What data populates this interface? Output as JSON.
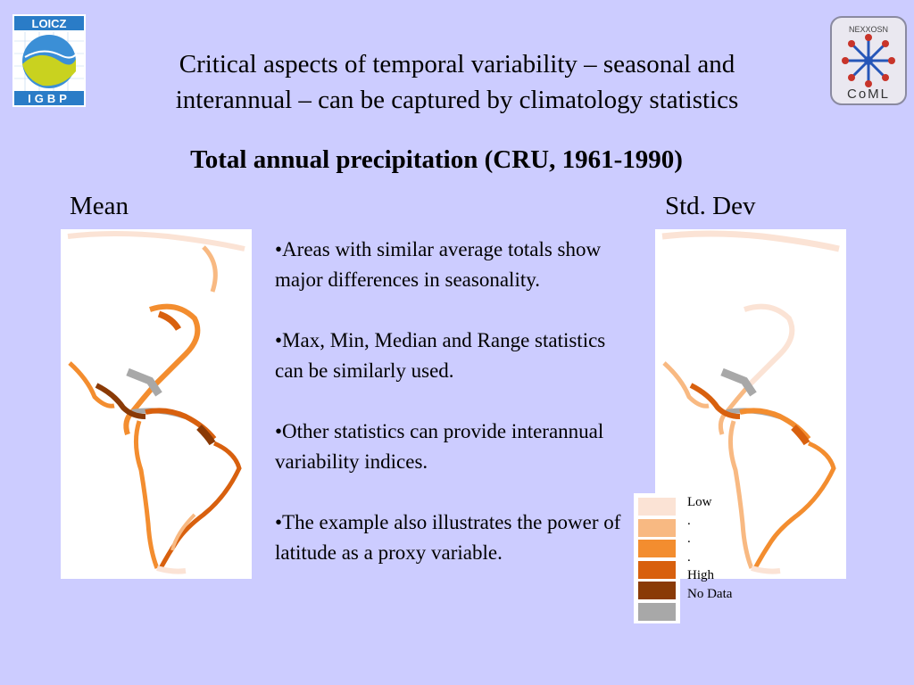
{
  "logos": {
    "left": {
      "top_text": "LOICZ",
      "bottom_text": "IGBP"
    },
    "right": {
      "top_text": "NEXXOSN",
      "bottom_text": "CoML"
    }
  },
  "title": {
    "line1": "Critical aspects of temporal variability – seasonal and",
    "line2": "interannual – can be captured by climatology statistics"
  },
  "subtitle": "Total annual precipitation (CRU, 1961-1990)",
  "labels": {
    "left": "Mean",
    "right": "Std. Dev"
  },
  "bullets": [
    "•Areas with similar average totals show major differences in seasonality.",
    "•Max, Min, Median and Range statistics can be similarly used.",
    "•Other statistics can provide interannual variability indices.",
    "•The example also illustrates the power of latitude as a proxy variable."
  ],
  "legend": [
    {
      "label": "Low",
      "color": "#fbe3d5"
    },
    {
      "label": ".",
      "color": "#f8b982"
    },
    {
      "label": ".",
      "color": "#f38d2f"
    },
    {
      "label": ".",
      "color": "#d8600e"
    },
    {
      "label": "High",
      "color": "#8a3a06"
    },
    {
      "label": "No Data",
      "color": "#a8a8a8"
    }
  ],
  "colors": {
    "background": "#ccccff",
    "coast_light": "#fbe3d5",
    "coast_mid": "#f38d2f",
    "coast_dark": "#d8600e",
    "coast_high": "#8a3a06",
    "no_data": "#a8a8a8"
  }
}
